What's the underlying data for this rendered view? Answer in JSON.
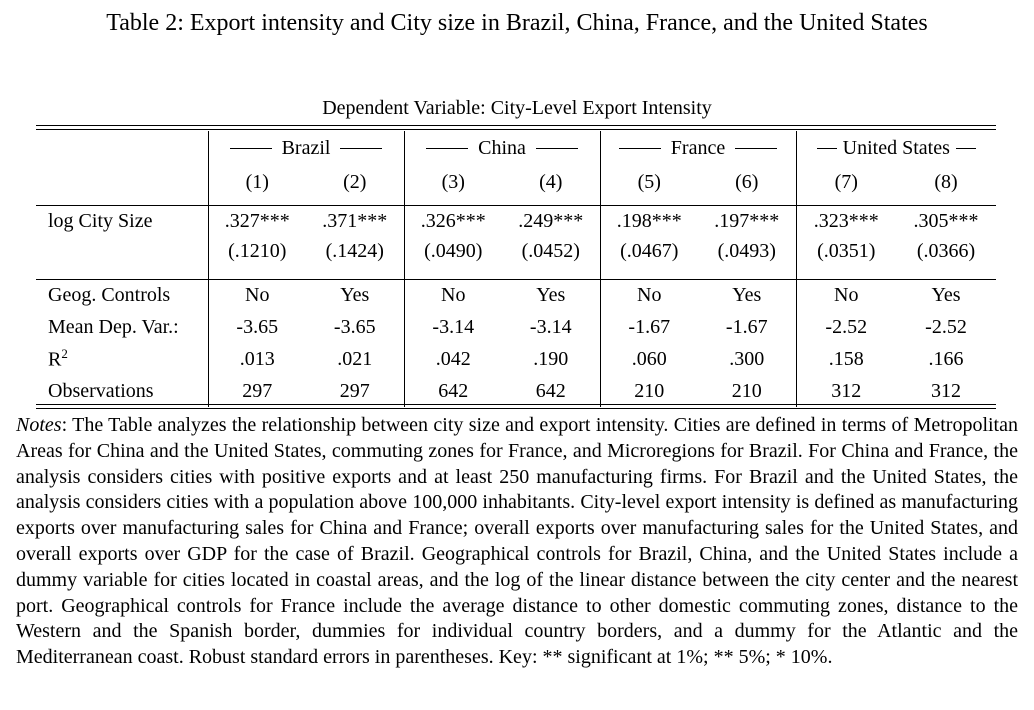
{
  "title": "Table 2: Export intensity and City size in Brazil, China, France, and the United States",
  "dependent_variable": "Dependent Variable: City-Level Export Intensity",
  "groups": [
    "Brazil",
    "China",
    "France",
    "United States"
  ],
  "columns": [
    "(1)",
    "(2)",
    "(3)",
    "(4)",
    "(5)",
    "(6)",
    "(7)",
    "(8)"
  ],
  "coef_row": {
    "label": "log City Size",
    "coef": [
      ".327***",
      ".371***",
      ".326***",
      ".249***",
      ".198***",
      ".197***",
      ".323***",
      ".305***"
    ],
    "se": [
      "(.1210)",
      "(.1424)",
      "(.0490)",
      "(.0452)",
      "(.0467)",
      "(.0493)",
      "(.0351)",
      "(.0366)"
    ]
  },
  "stat_rows": [
    {
      "label": "Geog. Controls",
      "values": [
        "No",
        "Yes",
        "No",
        "Yes",
        "No",
        "Yes",
        "No",
        "Yes"
      ]
    },
    {
      "label": "Mean Dep. Var.:",
      "values": [
        "-3.65",
        "-3.65",
        "-3.14",
        "-3.14",
        "-1.67",
        "-1.67",
        "-2.52",
        "-2.52"
      ]
    },
    {
      "label": "R",
      "values": [
        ".013",
        ".021",
        ".042",
        ".190",
        ".060",
        ".300",
        ".158",
        ".166"
      ]
    },
    {
      "label": "Observations",
      "values": [
        "297",
        "297",
        "642",
        "642",
        "210",
        "210",
        "312",
        "312"
      ]
    }
  ],
  "r2_superscript": "2",
  "notes": {
    "label": "Notes",
    "text": ": The Table analyzes the relationship between city size and export intensity. Cities are defined in terms of Metropolitan Areas for China and the United States, commuting zones for France, and Microregions for Brazil. For China and France, the analysis considers cities with positive exports and at least 250 manufacturing firms. For Brazil and the United States, the analysis considers cities with a population above 100,000 inhabitants. City-level export intensity is defined as manufacturing exports over manufacturing sales for China and France; overall exports over manufacturing sales for the United States, and overall exports over GDP for the case of Brazil. Geographical controls for Brazil, China, and the United States include a dummy variable for cities located in coastal areas, and the log of the linear distance between the city center and the nearest port. Geographical controls for France include the average distance to other domestic commuting zones, distance to the Western and the Spanish border, dummies for individual country borders, and a dummy for the Atlantic and the Mediterranean coast. Robust standard errors in parentheses. Key: ** significant at 1%; ** 5%; * 10%."
  }
}
